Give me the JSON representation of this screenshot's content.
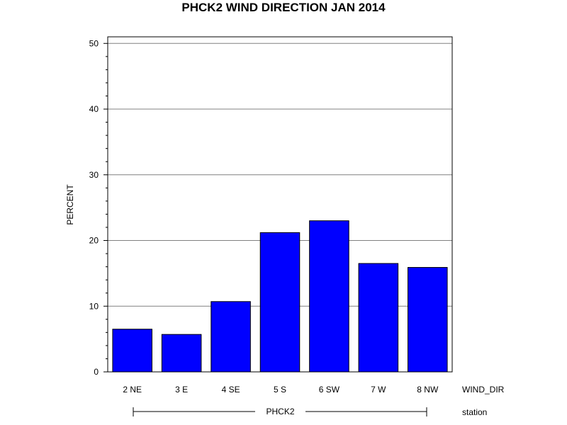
{
  "chart_data": {
    "type": "bar",
    "title": "PHCK2 WIND DIRECTION JAN 2014",
    "ylabel": "PERCENT",
    "xlabel": "WIND_DIR",
    "group_label": "station",
    "group_name": "PHCK2",
    "categories": [
      "2 NE",
      "3 E",
      "4 SE",
      "5 S",
      "6 SW",
      "7 W",
      "8 NW"
    ],
    "values": [
      6.5,
      5.7,
      10.7,
      21.2,
      23.0,
      16.5,
      15.9
    ],
    "ylim": [
      0,
      51
    ],
    "yticks": [
      0,
      10,
      20,
      30,
      40,
      50
    ],
    "grid": true,
    "bar_color": "#0000ff",
    "legend": "none"
  }
}
